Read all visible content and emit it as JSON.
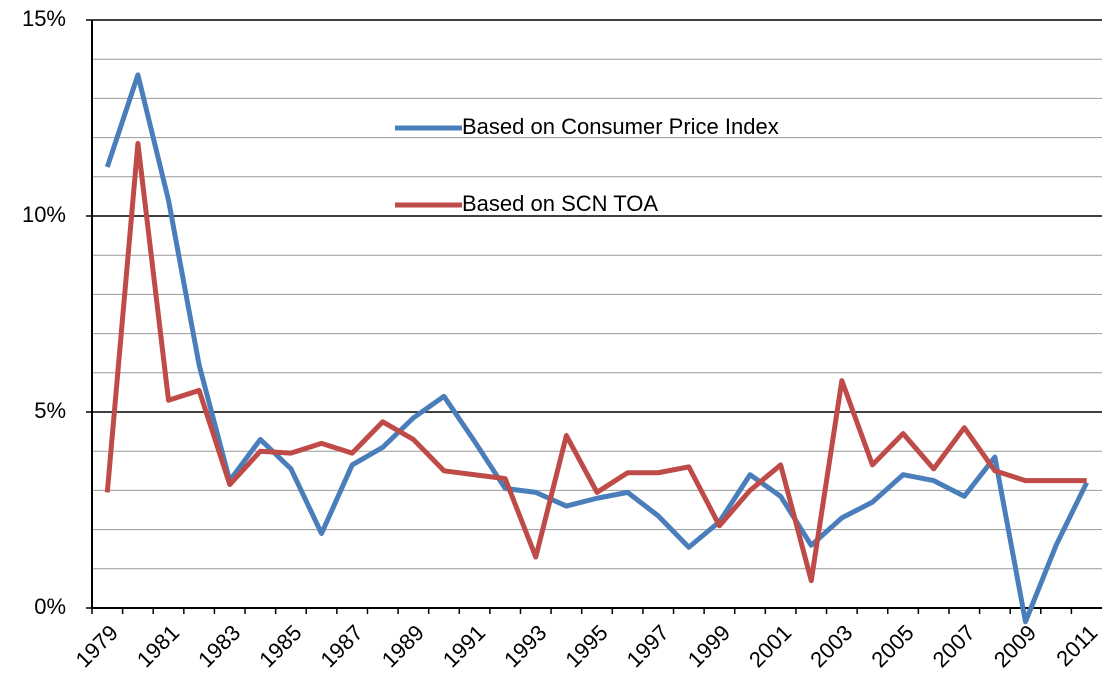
{
  "chart_data": {
    "type": "line",
    "categories": [
      "1979",
      null,
      "1981",
      null,
      "1983",
      null,
      "1985",
      null,
      "1987",
      null,
      "1989",
      null,
      "1991",
      null,
      "1993",
      null,
      "1995",
      null,
      "1997",
      null,
      "1999",
      null,
      "2001",
      null,
      "2003",
      null,
      "2005",
      null,
      "2007",
      null,
      "2009",
      null,
      "2011"
    ],
    "series": [
      {
        "name": "Based on Consumer Price Index",
        "color": "#4a7ebb",
        "values": [
          11.25,
          13.6,
          10.4,
          6.2,
          3.25,
          4.3,
          3.55,
          1.9,
          3.65,
          4.1,
          4.85,
          5.4,
          4.25,
          3.05,
          2.95,
          2.6,
          2.8,
          2.95,
          2.35,
          1.55,
          2.2,
          3.4,
          2.85,
          1.6,
          2.3,
          2.7,
          3.4,
          3.25,
          2.85,
          3.85,
          -0.35,
          1.6,
          3.2
        ]
      },
      {
        "name": "Based on SCN TOA",
        "color": "#be4b48",
        "values": [
          2.95,
          11.85,
          5.3,
          5.55,
          3.15,
          4.0,
          3.95,
          4.2,
          3.95,
          4.75,
          4.3,
          3.5,
          3.4,
          3.3,
          1.3,
          4.4,
          2.95,
          3.45,
          3.45,
          3.6,
          2.1,
          3.0,
          3.65,
          0.7,
          5.8,
          3.65,
          4.45,
          3.55,
          4.6,
          3.5,
          3.25,
          3.25,
          3.25
        ]
      }
    ],
    "ylim": [
      0,
      15
    ],
    "yticks": [
      {
        "value": 0,
        "label": "0%"
      },
      {
        "value": 5,
        "label": "5%"
      },
      {
        "value": 10,
        "label": "10%"
      },
      {
        "value": 15,
        "label": "15%"
      }
    ],
    "minor_gridlines": [
      1,
      2,
      3,
      4,
      6,
      7,
      8,
      9,
      11,
      12,
      13,
      14
    ],
    "grid": true
  }
}
